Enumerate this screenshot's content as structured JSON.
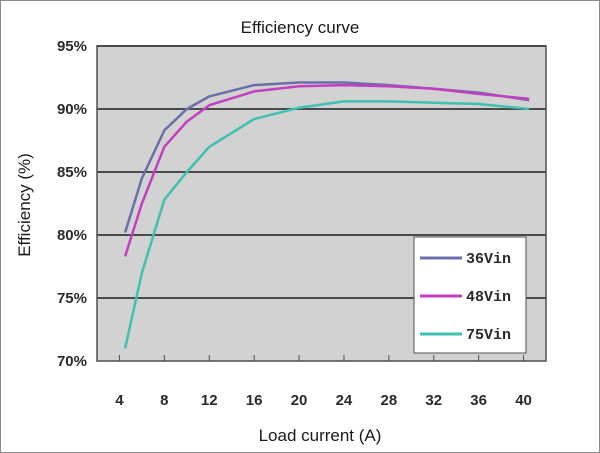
{
  "chart_data": {
    "type": "line",
    "title": "Efficiency curve",
    "xlabel": "Load current (A)",
    "ylabel": "Efficiency (%)",
    "xticks": [
      4,
      8,
      12,
      16,
      20,
      24,
      28,
      32,
      36,
      40
    ],
    "yticks": [
      70,
      75,
      80,
      85,
      90,
      95
    ],
    "ytick_labels": [
      "70%",
      "75%",
      "80%",
      "85%",
      "90%",
      "95%"
    ],
    "xlim": [
      2,
      42
    ],
    "ylim": [
      70,
      95
    ],
    "grid": "horizontal",
    "legend_position": "bottom-right",
    "series": [
      {
        "name": "36Vin",
        "color": "#6b6fa8",
        "x": [
          4.5,
          6,
          8,
          10,
          12,
          16,
          20,
          24,
          28,
          32,
          36,
          40.5
        ],
        "y": [
          80.2,
          84.5,
          88.3,
          90,
          91,
          91.9,
          92.1,
          92.1,
          91.9,
          91.6,
          91.3,
          90.7
        ]
      },
      {
        "name": "48Vin",
        "color": "#c23fc2",
        "x": [
          4.5,
          6,
          8,
          10,
          12,
          16,
          20,
          24,
          28,
          32,
          36,
          40.5
        ],
        "y": [
          78.3,
          82.5,
          87,
          89,
          90.3,
          91.4,
          91.8,
          91.9,
          91.8,
          91.6,
          91.2,
          90.8
        ]
      },
      {
        "name": "75Vin",
        "color": "#3ec0b2",
        "x": [
          4.5,
          6,
          8,
          10,
          12,
          16,
          20,
          24,
          28,
          32,
          36,
          40.5
        ],
        "y": [
          71,
          77,
          82.8,
          85,
          87,
          89.2,
          90.1,
          90.6,
          90.6,
          90.5,
          90.4,
          90
        ]
      }
    ]
  }
}
